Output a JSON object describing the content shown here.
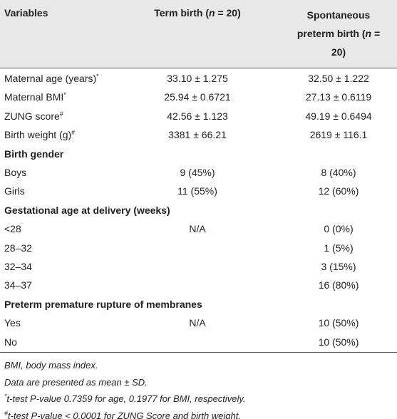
{
  "header": {
    "col0": "Variables",
    "col1": {
      "before": "Term birth (",
      "italic": "n",
      "after": " = 20)"
    },
    "col2": {
      "before": "Spontaneous preterm birth (",
      "italic": "n",
      "after": " = 20)"
    }
  },
  "rows": [
    {
      "label": "Maternal age (years)",
      "sup": "*",
      "term": "33.10 ± 1.275",
      "preterm": "32.50 ± 1.222"
    },
    {
      "label": "Maternal BMI",
      "sup": "*",
      "term": "25.94 ± 0.6721",
      "preterm": "27.13 ± 0.6119"
    },
    {
      "label": "ZUNG score",
      "sup": "#",
      "term": "42.56 ± 1.123",
      "preterm": "49.19 ± 0.6494"
    },
    {
      "label": "Birth weight (g)",
      "sup": "#",
      "term": "3381 ± 66.21",
      "preterm": "2619 ± 116.1"
    },
    {
      "section": "Birth gender"
    },
    {
      "label": "Boys",
      "term": "9 (45%)",
      "preterm": "8 (40%)"
    },
    {
      "label": "Girls",
      "term": "11 (55%)",
      "preterm": "12 (60%)"
    },
    {
      "section": "Gestational age at delivery (weeks)"
    },
    {
      "label": "<28",
      "term": "N/A",
      "preterm": "0 (0%)"
    },
    {
      "label": "28–32",
      "preterm": "1 (5%)"
    },
    {
      "label": "32–34",
      "preterm": "3 (15%)"
    },
    {
      "label": "34–37",
      "preterm": "16 (80%)"
    },
    {
      "section": "Preterm premature rupture of membranes"
    },
    {
      "label": "Yes",
      "term": "N/A",
      "preterm": "10 (50%)"
    },
    {
      "label": "No",
      "preterm": "10 (50%)"
    }
  ],
  "footnotes": [
    {
      "text": "BMI, body mass index."
    },
    {
      "text": "Data are presented as mean ± SD."
    },
    {
      "sup": "*",
      "text": "t-test P-value 0.7359 for age, 0.1977 for BMI, respectively."
    },
    {
      "sup": "#",
      "text": "t-test P-value < 0.0001 for ZUNG Score and birth weight."
    }
  ]
}
